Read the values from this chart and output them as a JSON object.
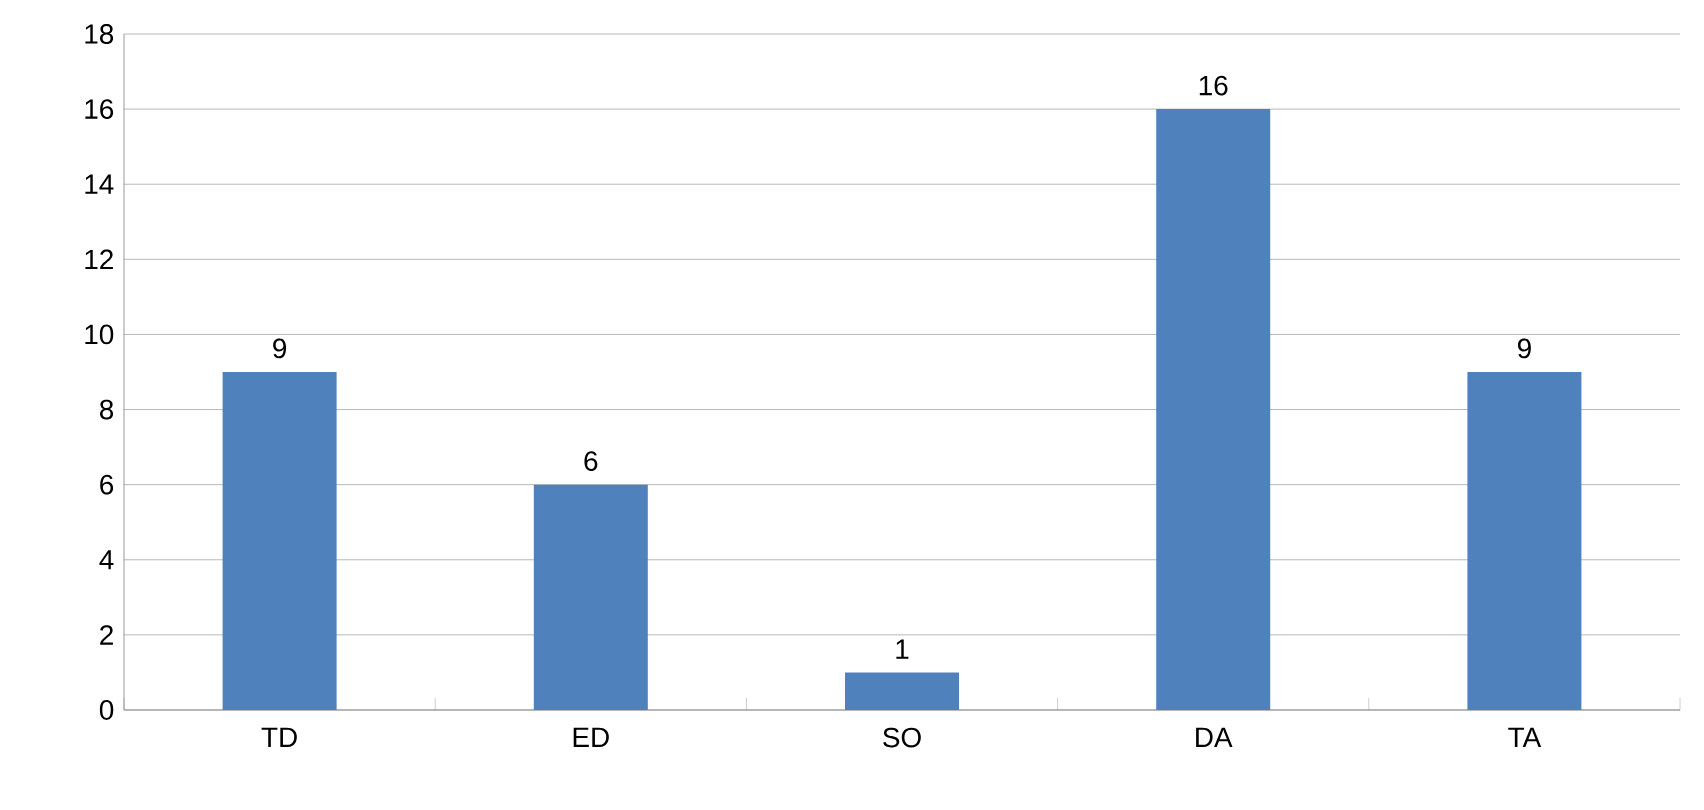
{
  "chart_data": {
    "type": "bar",
    "categories": [
      "TD",
      "ED",
      "SO",
      "DA",
      "TA"
    ],
    "values": [
      9,
      6,
      1,
      16,
      9
    ],
    "color": "#4f81bd",
    "ylim": [
      0,
      18
    ],
    "yticks": [
      0,
      2,
      4,
      6,
      8,
      10,
      12,
      14,
      16,
      18
    ],
    "grid": "y",
    "data_labels": true
  }
}
